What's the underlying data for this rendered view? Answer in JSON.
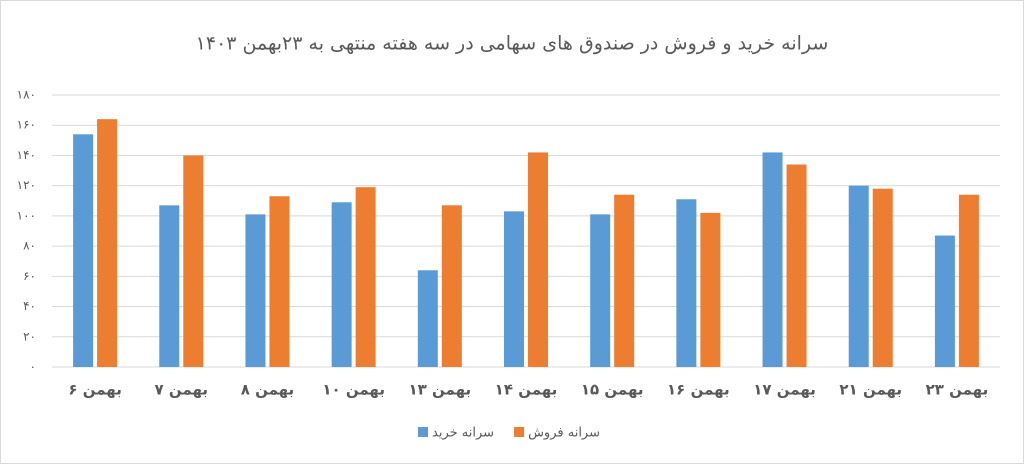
{
  "chart_data": {
    "type": "bar",
    "title": "سرانه خرید و فروش در صندوق های سهامی در سه هفته منتهی به ۲۳بهمن ۱۴۰۳",
    "categories": [
      "۶ بهمن",
      "۷ بهمن",
      "۸ بهمن",
      "۱۰ بهمن",
      "۱۳ بهمن",
      "۱۴ بهمن",
      "۱۵ بهمن",
      "۱۶ بهمن",
      "۱۷ بهمن",
      "۲۱ بهمن",
      "۲۳ بهمن"
    ],
    "series": [
      {
        "name": "سرانه خرید",
        "color": "#5b9bd5",
        "values": [
          154,
          107,
          101,
          109,
          64,
          103,
          101,
          111,
          142,
          120,
          87
        ]
      },
      {
        "name": "سرانه فروش",
        "color": "#ed7d31",
        "values": [
          164,
          140,
          113,
          119,
          107,
          142,
          114,
          102,
          134,
          118,
          114
        ]
      }
    ],
    "ylim": [
      0,
      180
    ],
    "yticks": [
      {
        "value": 0,
        "label": "۰"
      },
      {
        "value": 20,
        "label": "۲۰"
      },
      {
        "value": 40,
        "label": "۴۰"
      },
      {
        "value": 60,
        "label": "۶۰"
      },
      {
        "value": 80,
        "label": "۸۰"
      },
      {
        "value": 100,
        "label": "۱۰۰"
      },
      {
        "value": 120,
        "label": "۱۲۰"
      },
      {
        "value": 140,
        "label": "۱۴۰"
      },
      {
        "value": 160,
        "label": "۱۶۰"
      },
      {
        "value": 180,
        "label": "۱۸۰"
      }
    ],
    "grid": true,
    "legend": "bottom"
  }
}
